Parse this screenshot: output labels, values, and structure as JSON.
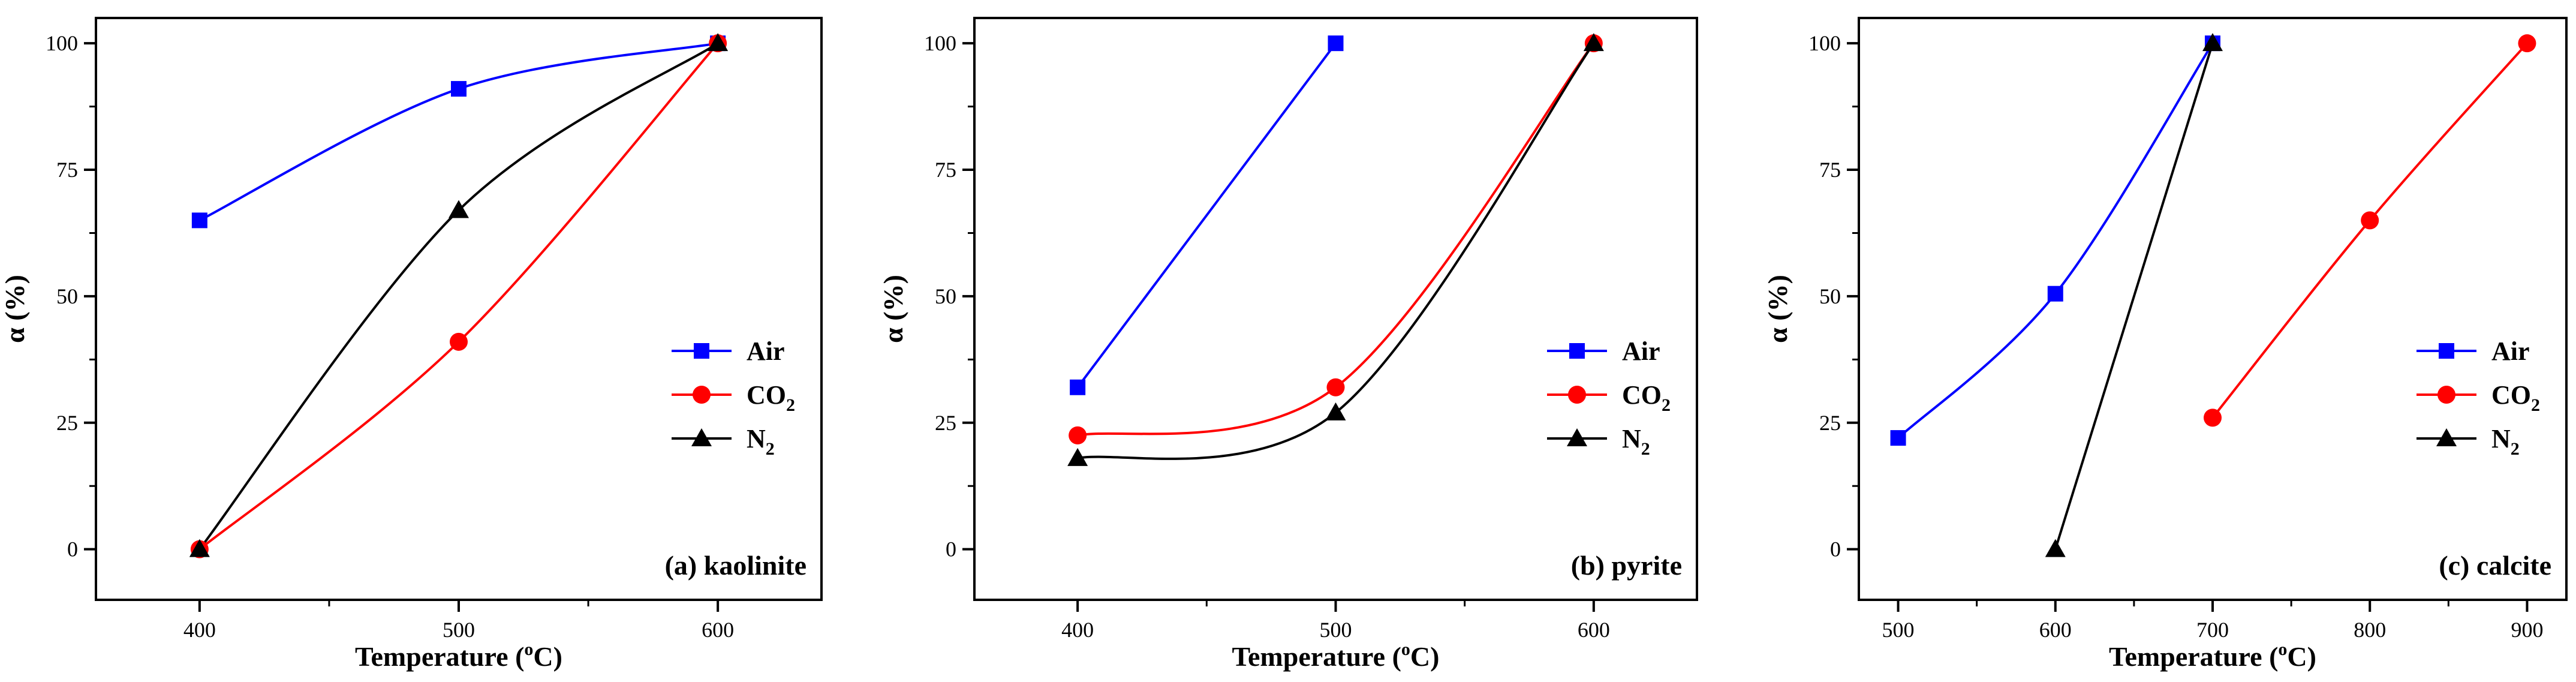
{
  "figure": {
    "colors": {
      "Air": "#0000ff",
      "CO2": "#ff0000",
      "N2": "#000000"
    },
    "markers": {
      "Air": "square",
      "CO2": "circle",
      "N2": "triangle"
    }
  },
  "chart_data": [
    {
      "type": "line",
      "title": "(a) kaolinite",
      "xlabel": "Temperature (oC)",
      "xlabel_parts": {
        "pre": "Temperature (",
        "sup": "o",
        "post": "C)"
      },
      "ylabel": "α (%)",
      "xlim": [
        360,
        640
      ],
      "ylim": [
        -10,
        105
      ],
      "xticks": [
        400,
        500,
        600
      ],
      "xticks_minor": [
        450,
        550
      ],
      "yticks": [
        0,
        25,
        50,
        75,
        100
      ],
      "yticks_minor": [
        12.5,
        37.5,
        62.5,
        87.5
      ],
      "series": [
        {
          "name": "Air",
          "key": "Air",
          "label_base": "Air",
          "label_sub": "",
          "x": [
            400,
            500,
            600
          ],
          "y": [
            65,
            91,
            100
          ]
        },
        {
          "name": "CO2",
          "key": "CO2",
          "label_base": "CO",
          "label_sub": "2",
          "x": [
            400,
            500,
            600
          ],
          "y": [
            0,
            41,
            100
          ]
        },
        {
          "name": "N2",
          "key": "N2",
          "label_base": "N",
          "label_sub": "2",
          "x": [
            400,
            500,
            600
          ],
          "y": [
            0,
            67,
            100
          ]
        }
      ]
    },
    {
      "type": "line",
      "title": "(b) pyrite",
      "xlabel": "Temperature (oC)",
      "xlabel_parts": {
        "pre": "Temperature (",
        "sup": "o",
        "post": "C)"
      },
      "ylabel": "α (%)",
      "xlim": [
        360,
        640
      ],
      "ylim": [
        -10,
        105
      ],
      "xticks": [
        400,
        500,
        600
      ],
      "xticks_minor": [
        450,
        550
      ],
      "yticks": [
        0,
        25,
        50,
        75,
        100
      ],
      "yticks_minor": [
        12.5,
        37.5,
        62.5,
        87.5
      ],
      "series": [
        {
          "name": "Air",
          "key": "Air",
          "label_base": "Air",
          "label_sub": "",
          "x": [
            400,
            500
          ],
          "y": [
            32,
            100
          ]
        },
        {
          "name": "CO2",
          "key": "CO2",
          "label_base": "CO",
          "label_sub": "2",
          "x": [
            400,
            500,
            600
          ],
          "y": [
            22.5,
            32,
            100
          ]
        },
        {
          "name": "N2",
          "key": "N2",
          "label_base": "N",
          "label_sub": "2",
          "x": [
            400,
            500,
            600
          ],
          "y": [
            18,
            27,
            100
          ]
        }
      ]
    },
    {
      "type": "line",
      "title": "(c) calcite",
      "xlabel": "Temperature (oC)",
      "xlabel_parts": {
        "pre": "Temperature (",
        "sup": "o",
        "post": "C)"
      },
      "ylabel": "α (%)",
      "xlim": [
        475,
        925
      ],
      "ylim": [
        -10,
        105
      ],
      "xticks": [
        500,
        600,
        700,
        800,
        900
      ],
      "xticks_minor": [
        550,
        650,
        750,
        850
      ],
      "yticks": [
        0,
        25,
        50,
        75,
        100
      ],
      "yticks_minor": [
        12.5,
        37.5,
        62.5,
        87.5
      ],
      "series": [
        {
          "name": "Air",
          "key": "Air",
          "label_base": "Air",
          "label_sub": "",
          "x": [
            500,
            600,
            700
          ],
          "y": [
            22,
            50.5,
            100
          ]
        },
        {
          "name": "CO2",
          "key": "CO2",
          "label_base": "CO",
          "label_sub": "2",
          "x": [
            700,
            800,
            900
          ],
          "y": [
            26,
            65,
            100
          ]
        },
        {
          "name": "N2",
          "key": "N2",
          "label_base": "N",
          "label_sub": "2",
          "x": [
            600,
            700
          ],
          "y": [
            0,
            100
          ]
        }
      ]
    }
  ]
}
